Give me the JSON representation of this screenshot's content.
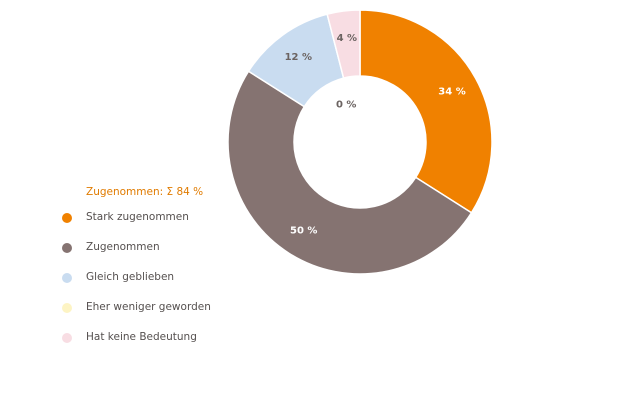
{
  "chart_data": {
    "type": "pie",
    "donut": true,
    "categories": [
      "Stark zugenommen",
      "Zugenommen",
      "Gleich geblieben",
      "Eher weniger geworden",
      "Hat keine Bedeutung"
    ],
    "values": [
      34,
      50,
      12,
      0,
      4
    ],
    "data_labels": [
      "34 %",
      "50 %",
      "12 %",
      "0 %",
      "4 %"
    ],
    "colors": [
      "#f08100",
      "#857371",
      "#c9dcf0",
      "#fdf4c4",
      "#f8dde3"
    ],
    "label_colors": [
      "#ffffff",
      "#ffffff",
      "#6b6361",
      "#6b6361",
      "#6b6361"
    ],
    "legend_position": "left",
    "legend_title": "Zugenommen: Σ 84 %",
    "legend_title_color": "#e07b00"
  }
}
